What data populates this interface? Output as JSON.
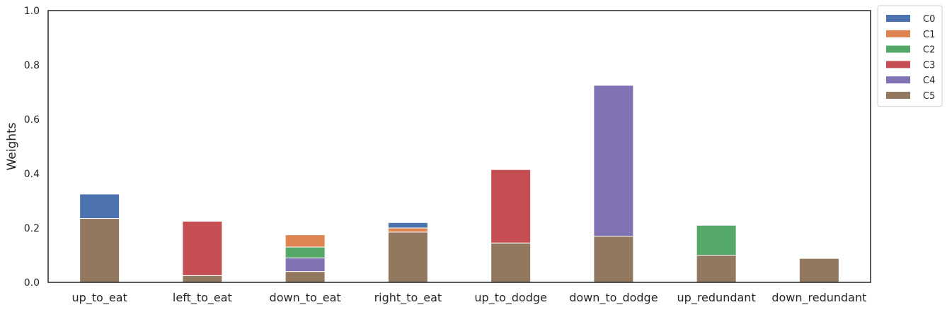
{
  "chart_data": {
    "type": "bar",
    "stacked": true,
    "title": "",
    "xlabel": "",
    "ylabel": "Weights",
    "ylim": [
      0,
      1.0
    ],
    "yticks": [
      "0.0",
      "0.2",
      "0.4",
      "0.6",
      "0.8",
      "1.0"
    ],
    "grid": false,
    "legend_position": "outside-top-right",
    "categories": [
      "up_to_eat",
      "left_to_eat",
      "down_to_eat",
      "right_to_eat",
      "up_to_dodge",
      "down_to_dodge",
      "up_redundant",
      "down_redundant"
    ],
    "series": [
      {
        "name": "C0",
        "color": "#4c72b0",
        "values": [
          0.09,
          0.0,
          0.0,
          0.02,
          0.0,
          0.0,
          0.0,
          0.0
        ]
      },
      {
        "name": "C1",
        "color": "#dd8452",
        "values": [
          0.0,
          0.0,
          0.045,
          0.015,
          0.0,
          0.0,
          0.0,
          0.0
        ]
      },
      {
        "name": "C2",
        "color": "#55a868",
        "values": [
          0.0,
          0.0,
          0.04,
          0.0,
          0.0,
          0.0,
          0.11,
          0.0
        ]
      },
      {
        "name": "C3",
        "color": "#c44e52",
        "values": [
          0.0,
          0.2,
          0.0,
          0.0,
          0.27,
          0.0,
          0.0,
          0.0
        ]
      },
      {
        "name": "C4",
        "color": "#8172b3",
        "values": [
          0.0,
          0.0,
          0.05,
          0.0,
          0.0,
          0.555,
          0.0,
          0.0
        ]
      },
      {
        "name": "C5",
        "color": "#937860",
        "values": [
          0.235,
          0.025,
          0.04,
          0.185,
          0.145,
          0.17,
          0.1,
          0.088
        ]
      }
    ],
    "stack_order_bottom_to_top": [
      "C5",
      "C4",
      "C3",
      "C2",
      "C1",
      "C0"
    ]
  }
}
